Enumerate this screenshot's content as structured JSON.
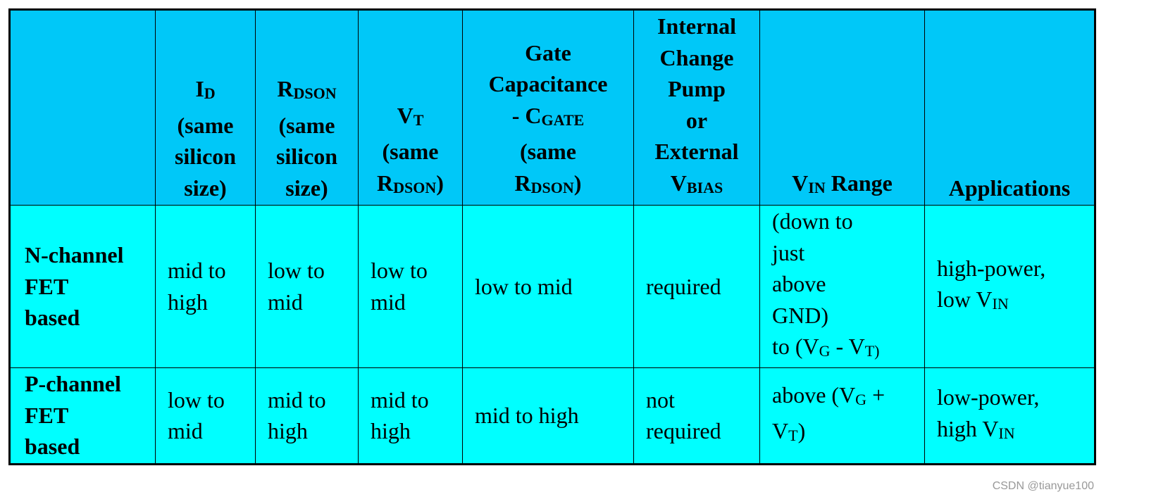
{
  "colors": {
    "header_bg": "#00c8f8",
    "body_bg": "#00ffff",
    "border": "#000000"
  },
  "header": [
    [],
    [
      [
        {
          "text": "I"
        },
        {
          "text": "D",
          "sub": true
        }
      ],
      [
        {
          "text": "(same"
        }
      ],
      [
        {
          "text": "silicon"
        }
      ],
      [
        {
          "text": "size)"
        }
      ]
    ],
    [
      [
        {
          "text": "R"
        },
        {
          "text": "DSON",
          "sub": true
        }
      ],
      [
        {
          "text": "(same"
        }
      ],
      [
        {
          "text": "silicon"
        }
      ],
      [
        {
          "text": "size)"
        }
      ]
    ],
    [
      [
        {
          "text": "V"
        },
        {
          "text": "T",
          "sub": true
        }
      ],
      [
        {
          "text": "(same"
        }
      ],
      [
        {
          "text": "R"
        },
        {
          "text": "DSON",
          "sub": true
        },
        {
          "text": ")"
        }
      ]
    ],
    [
      [
        {
          "text": "Gate"
        }
      ],
      [
        {
          "text": "Capacitance"
        }
      ],
      [
        {
          "text": "- C"
        },
        {
          "text": "GATE",
          "sub": true
        }
      ],
      [
        {
          "text": "(same"
        }
      ],
      [
        {
          "text": "R"
        },
        {
          "text": "DSON",
          "sub": true
        },
        {
          "text": ")"
        }
      ]
    ],
    [
      [
        {
          "text": "Internal"
        }
      ],
      [
        {
          "text": "Change"
        }
      ],
      [
        {
          "text": "Pump"
        }
      ],
      [
        {
          "text": "or"
        }
      ],
      [
        {
          "text": "External"
        }
      ],
      [
        {
          "text": "V"
        },
        {
          "text": "BIAS",
          "sub": true
        }
      ]
    ],
    [
      [
        {
          "text": "V"
        },
        {
          "text": "IN",
          "sub": true
        },
        {
          "text": " Range"
        }
      ]
    ],
    [
      [
        {
          "text": "Applications"
        }
      ]
    ]
  ],
  "rows": [
    [
      [
        [
          {
            "text": "N-channel"
          }
        ],
        [
          {
            "text": "FET"
          }
        ],
        [
          {
            "text": "based"
          }
        ]
      ],
      [
        [
          {
            "text": "mid to"
          }
        ],
        [
          {
            "text": "high"
          }
        ]
      ],
      [
        [
          {
            "text": "low to"
          }
        ],
        [
          {
            "text": "mid"
          }
        ]
      ],
      [
        [
          {
            "text": "low to"
          }
        ],
        [
          {
            "text": "mid"
          }
        ]
      ],
      [
        [
          {
            "text": "low to mid"
          }
        ]
      ],
      [
        [
          {
            "text": "required"
          }
        ]
      ],
      [
        [
          {
            "text": "(down to"
          }
        ],
        [
          {
            "text": "just"
          }
        ],
        [
          {
            "text": "above"
          }
        ],
        [
          {
            "text": "GND)"
          }
        ],
        [
          {
            "text": "to (V"
          },
          {
            "text": "G",
            "sub": true
          },
          {
            "text": " - V"
          },
          {
            "text": "T)",
            "sub": true
          }
        ]
      ],
      [
        [
          {
            "text": "high-power,"
          }
        ],
        [
          {
            "text": "low V"
          },
          {
            "text": "IN",
            "sub": true
          }
        ]
      ]
    ],
    [
      [
        [
          {
            "text": "P-channel"
          }
        ],
        [
          {
            "text": "FET"
          }
        ],
        [
          {
            "text": "based"
          }
        ]
      ],
      [
        [
          {
            "text": "low to"
          }
        ],
        [
          {
            "text": "mid"
          }
        ]
      ],
      [
        [
          {
            "text": "mid to"
          }
        ],
        [
          {
            "text": "high"
          }
        ]
      ],
      [
        [
          {
            "text": "mid to"
          }
        ],
        [
          {
            "text": "high"
          }
        ]
      ],
      [
        [
          {
            "text": "mid to high"
          }
        ]
      ],
      [
        [
          {
            "text": "not"
          }
        ],
        [
          {
            "text": "required"
          }
        ]
      ],
      [
        [
          {
            "text": "above (V"
          },
          {
            "text": "G",
            "sub": true
          },
          {
            "text": " +"
          }
        ],
        [
          {
            "text": "V"
          },
          {
            "text": "T",
            "sub": true
          },
          {
            "text": ")"
          }
        ]
      ],
      [
        [
          {
            "text": "low-power,"
          }
        ],
        [
          {
            "text": "high V"
          },
          {
            "text": "IN",
            "sub": true
          }
        ]
      ]
    ]
  ],
  "watermark": "CSDN @tianyue100"
}
